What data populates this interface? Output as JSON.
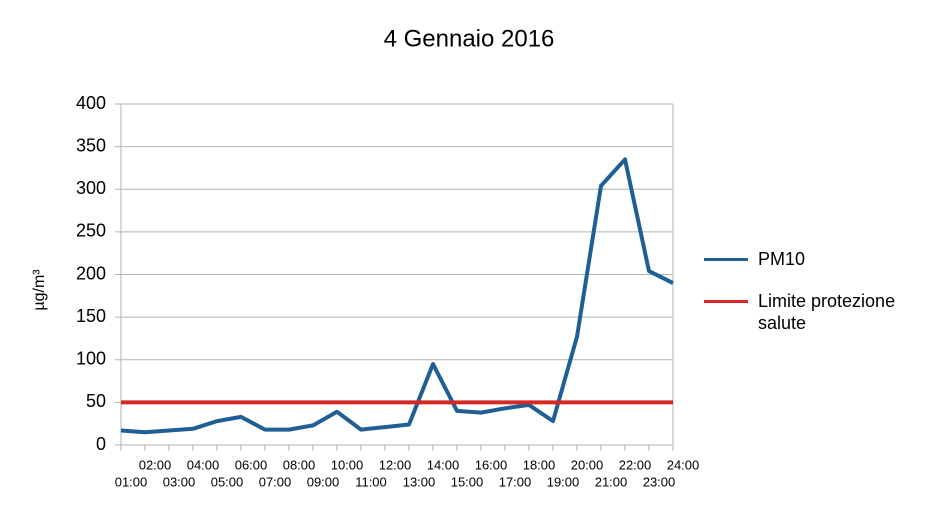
{
  "chart_data": {
    "type": "line",
    "title": "4 Gennaio 2016",
    "y_label": "µg/m³",
    "categories": [
      "01:00",
      "02:00",
      "03:00",
      "04:00",
      "05:00",
      "06:00",
      "07:00",
      "08:00",
      "09:00",
      "10:00",
      "11:00",
      "12:00",
      "13:00",
      "14:00",
      "15:00",
      "16:00",
      "17:00",
      "18:00",
      "19:00",
      "20:00",
      "21:00",
      "22:00",
      "23:00",
      "24:00"
    ],
    "series": [
      {
        "name": "PM10",
        "color": "#1f5f96",
        "values": [
          17,
          15,
          17,
          19,
          28,
          33,
          18,
          18,
          23,
          39,
          18,
          21,
          24,
          95,
          40,
          38,
          43,
          47,
          28,
          127,
          304,
          335,
          204,
          190
        ]
      },
      {
        "name": "Limite protezione salute",
        "color": "#d42a25",
        "values": [
          50,
          50,
          50,
          50,
          50,
          50,
          50,
          50,
          50,
          50,
          50,
          50,
          50,
          50,
          50,
          50,
          50,
          50,
          50,
          50,
          50,
          50,
          50,
          50
        ]
      }
    ],
    "ylim": [
      0,
      400
    ],
    "yticks": [
      0,
      50,
      100,
      150,
      200,
      250,
      300,
      350,
      400
    ],
    "grid": true,
    "legend": "right"
  }
}
